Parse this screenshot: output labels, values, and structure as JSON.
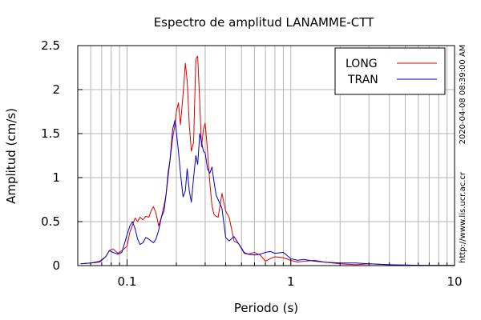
{
  "chart_data": {
    "type": "line",
    "title": "Espectro de amplitud LANAMME-CTT",
    "xlabel": "Periodo (s)",
    "ylabel": "Amplitud (cm/s)",
    "x_scale": "log",
    "xlim": [
      0.05,
      10
    ],
    "ylim": [
      0,
      2.5
    ],
    "x_ticks": [
      0.1,
      1,
      10
    ],
    "x_tick_labels": [
      "0.1",
      "1",
      "10"
    ],
    "y_ticks": [
      0,
      0.5,
      1,
      1.5,
      2,
      2.5
    ],
    "y_tick_labels": [
      "0",
      "0.5",
      "1",
      "1.5",
      "2",
      "2.5"
    ],
    "grid": true,
    "legend_position": "top-right",
    "series": [
      {
        "name": "LONG",
        "color": "#dd0000",
        "x": [
          0.052,
          0.06,
          0.068,
          0.074,
          0.078,
          0.082,
          0.088,
          0.093,
          0.1,
          0.104,
          0.108,
          0.112,
          0.116,
          0.12,
          0.125,
          0.13,
          0.136,
          0.14,
          0.145,
          0.15,
          0.156,
          0.162,
          0.168,
          0.173,
          0.178,
          0.183,
          0.19,
          0.196,
          0.2,
          0.206,
          0.212,
          0.22,
          0.227,
          0.233,
          0.24,
          0.247,
          0.255,
          0.263,
          0.27,
          0.278,
          0.285,
          0.293,
          0.3,
          0.31,
          0.32,
          0.33,
          0.34,
          0.35,
          0.36,
          0.38,
          0.4,
          0.42,
          0.45,
          0.48,
          0.52,
          0.55,
          0.6,
          0.65,
          0.7,
          0.75,
          0.8,
          0.9,
          1.0,
          1.1,
          1.2,
          1.4,
          1.6,
          2.0,
          2.5,
          3.0,
          4.0,
          5.0,
          7.0,
          10.0
        ],
        "y": [
          0.02,
          0.03,
          0.05,
          0.1,
          0.17,
          0.19,
          0.14,
          0.17,
          0.22,
          0.38,
          0.46,
          0.54,
          0.5,
          0.55,
          0.52,
          0.56,
          0.55,
          0.62,
          0.67,
          0.6,
          0.45,
          0.55,
          0.68,
          0.8,
          1.0,
          1.2,
          1.45,
          1.6,
          1.75,
          1.85,
          1.6,
          1.95,
          2.3,
          2.1,
          1.6,
          1.3,
          1.4,
          2.35,
          2.38,
          1.85,
          1.35,
          1.55,
          1.62,
          1.3,
          0.95,
          0.68,
          0.58,
          0.56,
          0.55,
          0.82,
          0.62,
          0.55,
          0.28,
          0.25,
          0.15,
          0.13,
          0.15,
          0.12,
          0.05,
          0.08,
          0.1,
          0.09,
          0.06,
          0.04,
          0.05,
          0.06,
          0.04,
          0.02,
          0.01,
          0.02,
          0.01,
          0.005,
          0.003,
          0.002
        ]
      },
      {
        "name": "TRAN",
        "color": "#0000cc",
        "x": [
          0.052,
          0.06,
          0.068,
          0.074,
          0.078,
          0.082,
          0.088,
          0.093,
          0.1,
          0.104,
          0.108,
          0.112,
          0.116,
          0.12,
          0.125,
          0.13,
          0.136,
          0.14,
          0.145,
          0.15,
          0.156,
          0.162,
          0.168,
          0.173,
          0.178,
          0.183,
          0.19,
          0.196,
          0.2,
          0.206,
          0.212,
          0.22,
          0.227,
          0.233,
          0.24,
          0.247,
          0.255,
          0.263,
          0.27,
          0.278,
          0.285,
          0.293,
          0.3,
          0.31,
          0.32,
          0.33,
          0.34,
          0.35,
          0.36,
          0.38,
          0.4,
          0.42,
          0.45,
          0.48,
          0.52,
          0.55,
          0.6,
          0.65,
          0.7,
          0.75,
          0.8,
          0.9,
          1.0,
          1.1,
          1.2,
          1.4,
          1.6,
          2.0,
          2.5,
          3.0,
          4.0,
          5.0,
          7.0,
          10.0
        ],
        "y": [
          0.02,
          0.03,
          0.04,
          0.1,
          0.17,
          0.15,
          0.13,
          0.15,
          0.35,
          0.45,
          0.5,
          0.42,
          0.3,
          0.24,
          0.26,
          0.32,
          0.3,
          0.28,
          0.26,
          0.3,
          0.4,
          0.55,
          0.62,
          0.8,
          1.05,
          1.2,
          1.55,
          1.65,
          1.52,
          1.3,
          1.05,
          0.78,
          0.85,
          1.1,
          0.85,
          0.72,
          1.0,
          1.25,
          1.15,
          1.5,
          1.4,
          1.3,
          1.28,
          1.1,
          1.05,
          1.12,
          0.95,
          0.8,
          0.75,
          0.65,
          0.32,
          0.28,
          0.33,
          0.25,
          0.14,
          0.13,
          0.12,
          0.13,
          0.15,
          0.16,
          0.14,
          0.15,
          0.08,
          0.06,
          0.07,
          0.05,
          0.04,
          0.03,
          0.03,
          0.02,
          0.01,
          0.005,
          0.003,
          0.002
        ]
      }
    ]
  },
  "side_labels": {
    "timestamp": "2020-04-08 08:39:00 AM",
    "url": "http://www.lis.ucr.ac.cr"
  }
}
